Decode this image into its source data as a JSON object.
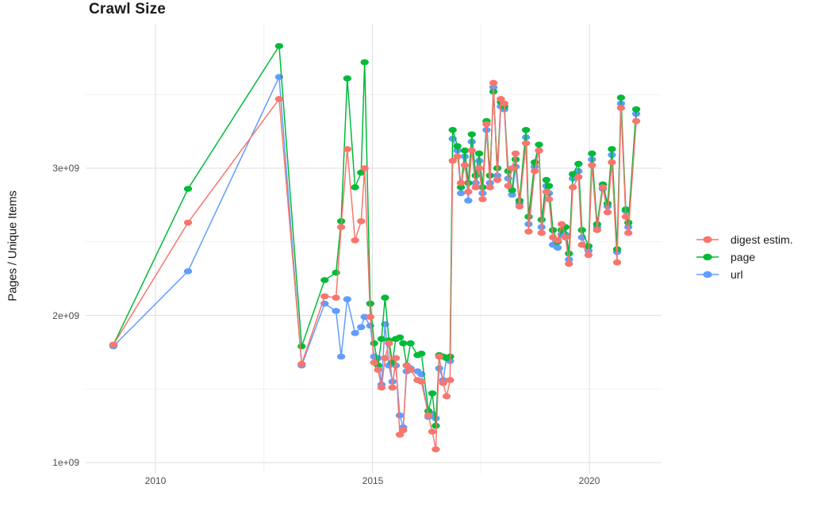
{
  "chart_data": {
    "type": "line",
    "title": "Crawl Size",
    "ylabel": "Pages / Unique Items",
    "xlabel": "",
    "value_unit": "pages (x 1e9)",
    "grid": true,
    "legend_position": "right",
    "x_axis": {
      "tick_labels": [
        "2010",
        "2015",
        "2020"
      ],
      "ticks": [
        2010,
        2015,
        2020
      ],
      "minor_gridlines": [
        2012.5,
        2017.5
      ],
      "range": [
        2008.4,
        2021.67
      ]
    },
    "y_axis": {
      "tick_labels": [
        "1e+09",
        "2e+09",
        "3e+09"
      ],
      "tick_values_e9": [
        1,
        2,
        3
      ],
      "minor_gridlines_e9": [
        1.5,
        2.5,
        3.5
      ],
      "range_e9": [
        0.92,
        3.97
      ]
    },
    "colors": {
      "grid_major": "#E3E3E3",
      "grid_minor": "#F1F1F1",
      "axis_text": "#4D4D4D",
      "title_text": "#1B1B1B"
    },
    "x_years": [
      2009.03,
      2010.75,
      2012.85,
      2013.37,
      2013.9,
      2014.16,
      2014.28,
      2014.42,
      2014.6,
      2014.74,
      2014.82,
      2014.95,
      2015.04,
      2015.13,
      2015.21,
      2015.29,
      2015.38,
      2015.46,
      2015.54,
      2015.63,
      2015.71,
      2015.79,
      2015.88,
      2016.04,
      2016.13,
      2016.29,
      2016.38,
      2016.46,
      2016.54,
      2016.63,
      2016.71,
      2016.79,
      2016.85,
      2016.96,
      2017.04,
      2017.13,
      2017.21,
      2017.29,
      2017.38,
      2017.46,
      2017.54,
      2017.63,
      2017.71,
      2017.79,
      2017.88,
      2017.96,
      2018.04,
      2018.13,
      2018.22,
      2018.3,
      2018.39,
      2018.54,
      2018.6,
      2018.74,
      2018.84,
      2018.9,
      2019.01,
      2019.07,
      2019.16,
      2019.27,
      2019.36,
      2019.45,
      2019.53,
      2019.62,
      2019.75,
      2019.83,
      2019.98,
      2020.06,
      2020.18,
      2020.31,
      2020.42,
      2020.52,
      2020.64,
      2020.73,
      2020.84,
      2020.9,
      2021.08
    ],
    "series": [
      {
        "name": "digest estim.",
        "color": "#F8766D",
        "values_e9": [
          1.8,
          2.63,
          3.47,
          1.67,
          2.13,
          2.12,
          2.6,
          3.13,
          2.51,
          2.64,
          3.0,
          1.99,
          1.68,
          1.63,
          1.51,
          1.71,
          1.81,
          1.51,
          1.71,
          1.19,
          1.22,
          1.66,
          1.63,
          1.56,
          1.55,
          1.32,
          1.21,
          1.09,
          1.72,
          1.54,
          1.45,
          1.56,
          3.05,
          3.08,
          2.9,
          3.02,
          2.84,
          3.12,
          2.87,
          3.0,
          2.79,
          3.3,
          2.87,
          3.58,
          2.92,
          3.47,
          3.44,
          2.88,
          3.0,
          3.1,
          2.74,
          3.17,
          2.57,
          2.98,
          3.12,
          2.56,
          2.84,
          2.79,
          2.53,
          2.51,
          2.62,
          2.53,
          2.35,
          2.87,
          2.94,
          2.48,
          2.41,
          3.02,
          2.58,
          2.87,
          2.7,
          3.04,
          2.36,
          3.41,
          2.67,
          2.56,
          3.32
        ]
      },
      {
        "name": "page",
        "color": "#00BA38",
        "values_e9": [
          1.8,
          2.86,
          3.83,
          1.79,
          2.24,
          2.29,
          2.64,
          3.61,
          2.87,
          2.97,
          3.72,
          2.08,
          1.81,
          1.66,
          1.84,
          2.12,
          1.83,
          1.68,
          1.84,
          1.85,
          1.81,
          1.66,
          1.81,
          1.73,
          1.74,
          1.35,
          1.47,
          1.25,
          1.73,
          1.72,
          1.71,
          1.72,
          3.26,
          3.15,
          2.87,
          3.12,
          2.9,
          3.23,
          2.95,
          3.1,
          2.87,
          3.32,
          2.95,
          3.52,
          3.0,
          3.45,
          3.42,
          2.98,
          2.85,
          3.06,
          2.78,
          3.26,
          2.67,
          3.04,
          3.16,
          2.65,
          2.92,
          2.88,
          2.58,
          2.5,
          2.58,
          2.6,
          2.42,
          2.96,
          3.03,
          2.58,
          2.47,
          3.1,
          2.62,
          2.89,
          2.76,
          3.13,
          2.45,
          3.48,
          2.72,
          2.63,
          3.4
        ]
      },
      {
        "name": "url",
        "color": "#619CFF",
        "values_e9": [
          1.79,
          2.3,
          3.62,
          1.66,
          2.08,
          2.03,
          1.72,
          2.11,
          1.88,
          1.92,
          1.99,
          1.93,
          1.72,
          1.71,
          1.53,
          1.94,
          1.66,
          1.55,
          1.66,
          1.32,
          1.24,
          1.62,
          1.64,
          1.62,
          1.6,
          1.31,
          1.33,
          1.3,
          1.64,
          1.56,
          1.71,
          1.69,
          3.2,
          3.12,
          2.83,
          3.08,
          2.78,
          3.18,
          2.9,
          3.05,
          2.83,
          3.26,
          2.9,
          3.55,
          2.95,
          3.42,
          3.4,
          2.93,
          2.82,
          3.01,
          2.76,
          3.21,
          2.62,
          3.01,
          3.12,
          2.6,
          2.88,
          2.83,
          2.48,
          2.46,
          2.55,
          2.55,
          2.38,
          2.93,
          2.98,
          2.53,
          2.44,
          3.06,
          2.6,
          2.86,
          2.74,
          3.09,
          2.43,
          3.44,
          2.71,
          2.6,
          3.37
        ]
      }
    ]
  }
}
